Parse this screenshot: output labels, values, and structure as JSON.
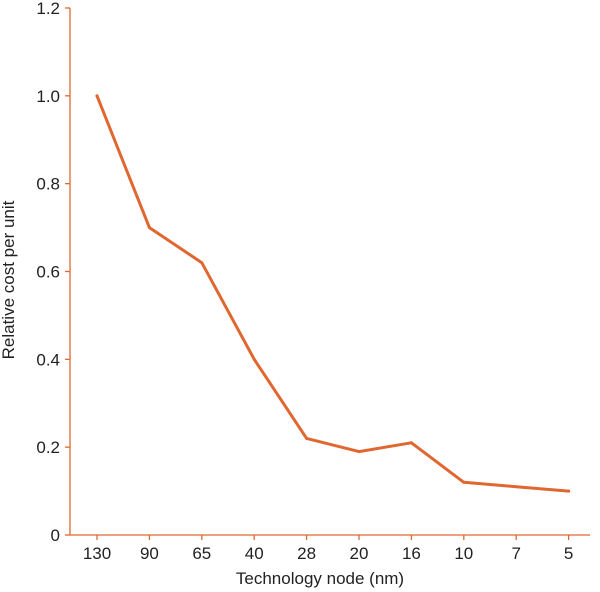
{
  "chart_data": {
    "type": "line",
    "title": "",
    "xlabel": "Technology node (nm)",
    "ylabel": "Relative cost per unit",
    "categories": [
      "130",
      "90",
      "65",
      "40",
      "28",
      "20",
      "16",
      "10",
      "7",
      "5"
    ],
    "series": [
      {
        "values": [
          1.0,
          0.7,
          0.62,
          0.4,
          0.22,
          0.19,
          0.21,
          0.12,
          0.11,
          0.1
        ],
        "color": "#E0672F"
      }
    ],
    "ylim": [
      0,
      1.2
    ],
    "yticks": [
      "0",
      "0.2",
      "0.4",
      "0.6",
      "0.8",
      "1.0",
      "1.2"
    ],
    "grid": false,
    "axis_color": "#E0672F"
  }
}
